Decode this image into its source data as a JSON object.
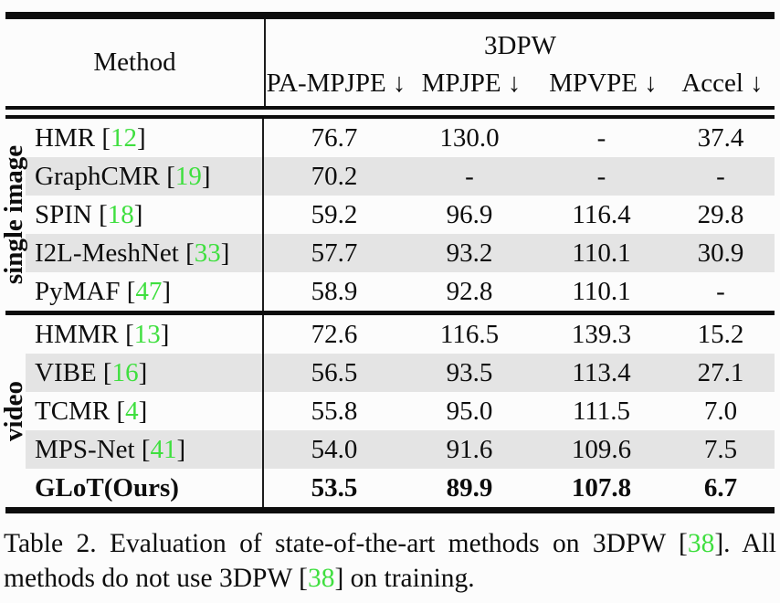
{
  "colors": {
    "citation_green": "#3fdf3f",
    "row_shade": "#e4e4e4",
    "rule_black": "#0d0d0d",
    "text": "#0d0d0d",
    "background": "#fcfcfc"
  },
  "table": {
    "header": {
      "method_label": "Method",
      "dataset_label": "3DPW",
      "columns": [
        "PA-MPJPE ↓",
        "MPJPE ↓",
        "MPVPE ↓",
        "Accel ↓"
      ]
    },
    "groups": [
      {
        "label": "single image",
        "rows": [
          {
            "method": "HMR",
            "cite": "12",
            "bold": false,
            "shaded": false,
            "values": [
              "76.7",
              "130.0",
              "-",
              "37.4"
            ]
          },
          {
            "method": "GraphCMR",
            "cite": "19",
            "bold": false,
            "shaded": true,
            "values": [
              "70.2",
              "-",
              "-",
              "-"
            ]
          },
          {
            "method": "SPIN",
            "cite": "18",
            "bold": false,
            "shaded": false,
            "values": [
              "59.2",
              "96.9",
              "116.4",
              "29.8"
            ]
          },
          {
            "method": "I2L-MeshNet",
            "cite": "33",
            "bold": false,
            "shaded": true,
            "values": [
              "57.7",
              "93.2",
              "110.1",
              "30.9"
            ]
          },
          {
            "method": "PyMAF",
            "cite": "47",
            "bold": false,
            "shaded": false,
            "values": [
              "58.9",
              "92.8",
              "110.1",
              "-"
            ]
          }
        ]
      },
      {
        "label": "video",
        "rows": [
          {
            "method": "HMMR",
            "cite": "13",
            "bold": false,
            "shaded": false,
            "values": [
              "72.6",
              "116.5",
              "139.3",
              "15.2"
            ]
          },
          {
            "method": "VIBE",
            "cite": "16",
            "bold": false,
            "shaded": true,
            "values": [
              "56.5",
              "93.5",
              "113.4",
              "27.1"
            ]
          },
          {
            "method": "TCMR",
            "cite": "4",
            "bold": false,
            "shaded": false,
            "values": [
              "55.8",
              "95.0",
              "111.5",
              "7.0"
            ]
          },
          {
            "method": "MPS-Net",
            "cite": "41",
            "bold": false,
            "shaded": true,
            "values": [
              "54.0",
              "91.6",
              "109.6",
              "7.5"
            ]
          },
          {
            "method": "GLoT(Ours)",
            "cite": null,
            "bold": true,
            "shaded": false,
            "values": [
              "53.5",
              "89.9",
              "107.8",
              "6.7"
            ]
          }
        ]
      }
    ]
  },
  "caption": {
    "line1": [
      {
        "text": "Table 2. Evaluation of state-of-the-art methods on 3DPW [",
        "cite": false
      },
      {
        "text": "38",
        "cite": true
      },
      {
        "text": "]. All",
        "cite": false
      }
    ],
    "line2": [
      {
        "text": "methods do not use 3DPW [",
        "cite": false
      },
      {
        "text": "38",
        "cite": true
      },
      {
        "text": "] on training.",
        "cite": false
      }
    ]
  }
}
